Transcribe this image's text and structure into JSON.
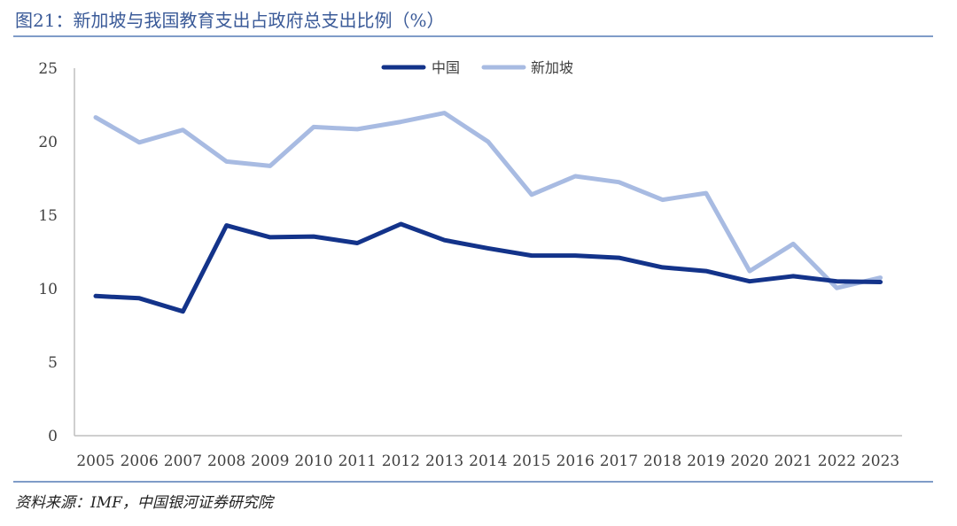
{
  "header": {
    "title": "图21：新加坡与我国教育支出占政府总支出比例（%）"
  },
  "footer": {
    "source": "资料来源：IMF，中国银河证券研究院"
  },
  "colors": {
    "china": "#13338a",
    "singapore": "#a8bbe2",
    "axis": "#bfbfbf",
    "title": "#3a5a98",
    "rule": "#7f9cc8"
  },
  "chart_data": {
    "type": "line",
    "title": "图21：新加坡与我国教育支出占政府总支出比例（%）",
    "xlabel": "",
    "ylabel": "",
    "ylim": [
      0,
      25
    ],
    "yticks": [
      0,
      5,
      10,
      15,
      20,
      25
    ],
    "grid": false,
    "legend_position": "top-center",
    "x": [
      "2005",
      "2006",
      "2007",
      "2008",
      "2009",
      "2010",
      "2011",
      "2012",
      "2013",
      "2014",
      "2015",
      "2016",
      "2017",
      "2018",
      "2019",
      "2020",
      "2021",
      "2022",
      "2023"
    ],
    "series": [
      {
        "name": "中国",
        "color": "#13338a",
        "values": [
          9.5,
          9.35,
          8.45,
          14.3,
          13.5,
          13.55,
          13.1,
          14.4,
          13.3,
          12.75,
          12.25,
          12.25,
          12.1,
          11.45,
          11.2,
          10.5,
          10.85,
          10.5,
          10.45
        ]
      },
      {
        "name": "新加坡",
        "color": "#a8bbe2",
        "values": [
          21.65,
          19.95,
          20.8,
          18.65,
          18.35,
          21.0,
          20.85,
          21.35,
          21.95,
          20.0,
          16.4,
          17.65,
          17.25,
          16.05,
          16.5,
          11.2,
          13.05,
          10.05,
          10.75
        ]
      }
    ]
  }
}
